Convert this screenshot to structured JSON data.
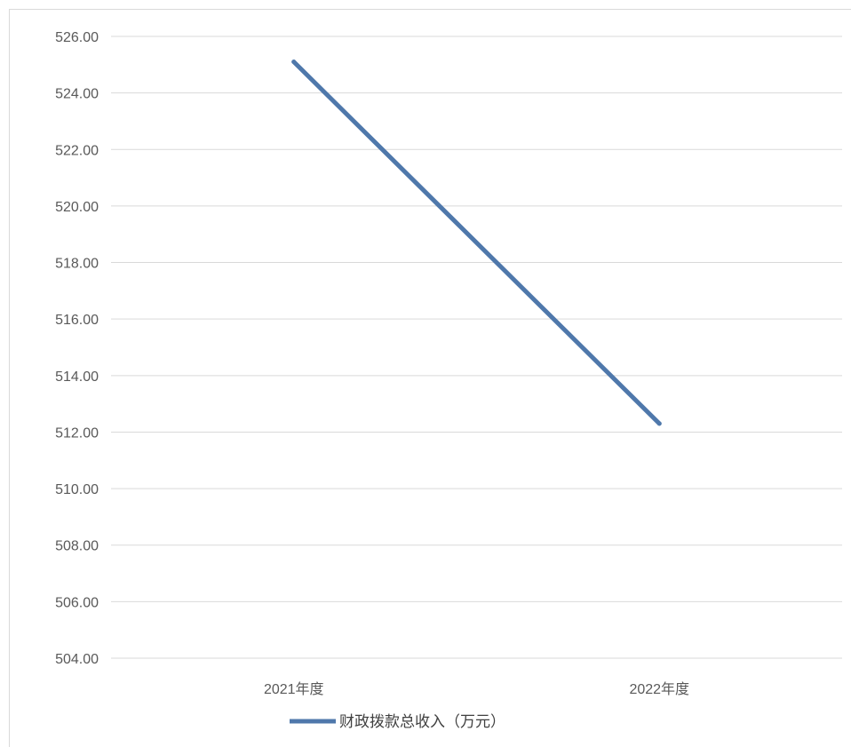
{
  "chart_data": {
    "type": "line",
    "categories": [
      "2021年度",
      "2022年度"
    ],
    "series": [
      {
        "name": "财政拨款总收入（万元）",
        "values": [
          525.1,
          512.3
        ],
        "color": "#4f78ab"
      }
    ],
    "ylim": [
      504,
      526
    ],
    "y_ticks": [
      "504.00",
      "506.00",
      "508.00",
      "510.00",
      "512.00",
      "514.00",
      "516.00",
      "518.00",
      "520.00",
      "522.00",
      "524.00",
      "526.00"
    ],
    "grid": true,
    "legend": "bottom"
  }
}
